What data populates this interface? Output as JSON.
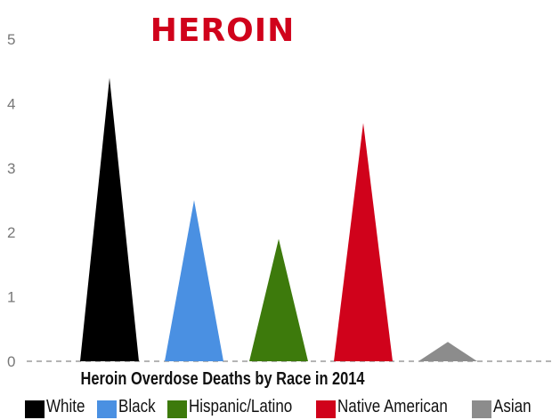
{
  "chart_data": {
    "type": "bar",
    "title": "HEROIN",
    "xlabel": "Heroin Overdose Deaths by Race in 2014",
    "ylabel": "",
    "ylim": [
      0,
      5
    ],
    "yticks": [
      "0",
      "1",
      "2",
      "3",
      "4",
      "5"
    ],
    "categories": [
      "White",
      "Black",
      "Hispanic/Latino",
      "Native American",
      "Asian"
    ],
    "values": [
      4.4,
      2.5,
      1.9,
      3.7,
      0.3
    ],
    "colors": [
      "#000000",
      "#4a90e2",
      "#3d7a0c",
      "#d0021b",
      "#8c8c8c"
    ],
    "title_color": "#d0021b",
    "grid": false,
    "legend_position": "bottom"
  }
}
